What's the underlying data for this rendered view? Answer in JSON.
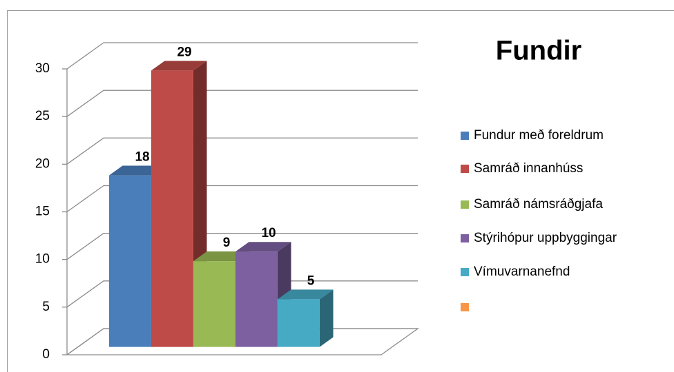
{
  "chart_data": {
    "type": "bar3d",
    "title": "Fundir",
    "series": [
      {
        "name": "Fundur með foreldrum",
        "color": "#4a7ebb",
        "values": [
          18
        ]
      },
      {
        "name": "Samráð innanhúss",
        "color": "#be4b48",
        "values": [
          29
        ]
      },
      {
        "name": "Samráð námsráðgjafa",
        "color": "#98b954",
        "values": [
          9
        ]
      },
      {
        "name": "Stýrihópur uppbyggingar",
        "color": "#7d60a0",
        "values": [
          10
        ]
      },
      {
        "name": "Vímuvarnanefnd",
        "color": "#46aac5",
        "values": [
          5
        ]
      },
      {
        "name": null,
        "color": "#f79646",
        "values": [
          null
        ]
      }
    ],
    "ylim": [
      0,
      30
    ],
    "yticks": [
      0,
      5,
      10,
      15,
      20,
      25,
      30
    ],
    "grid": true,
    "legend": "right"
  }
}
